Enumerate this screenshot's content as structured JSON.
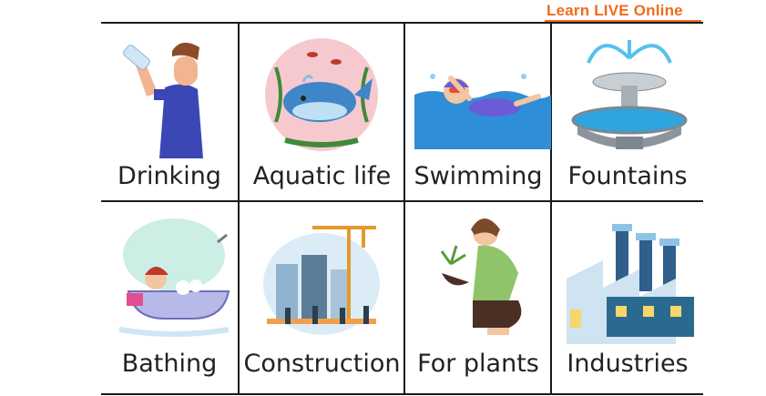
{
  "brand": {
    "text": "Learn LIVE Online",
    "color": "#f06a1d"
  },
  "cells": [
    {
      "label": "Drinking",
      "icon": "person-drinking-icon"
    },
    {
      "label": "Aquatic life",
      "icon": "whale-icon"
    },
    {
      "label": "Swimming",
      "icon": "swimmer-icon"
    },
    {
      "label": "Fountains",
      "icon": "fountain-icon"
    },
    {
      "label": "Bathing",
      "icon": "bathtub-icon"
    },
    {
      "label": "Construction",
      "icon": "construction-site-icon"
    },
    {
      "label": "For plants",
      "icon": "gardener-icon"
    },
    {
      "label": "Industries",
      "icon": "factory-icon"
    }
  ]
}
